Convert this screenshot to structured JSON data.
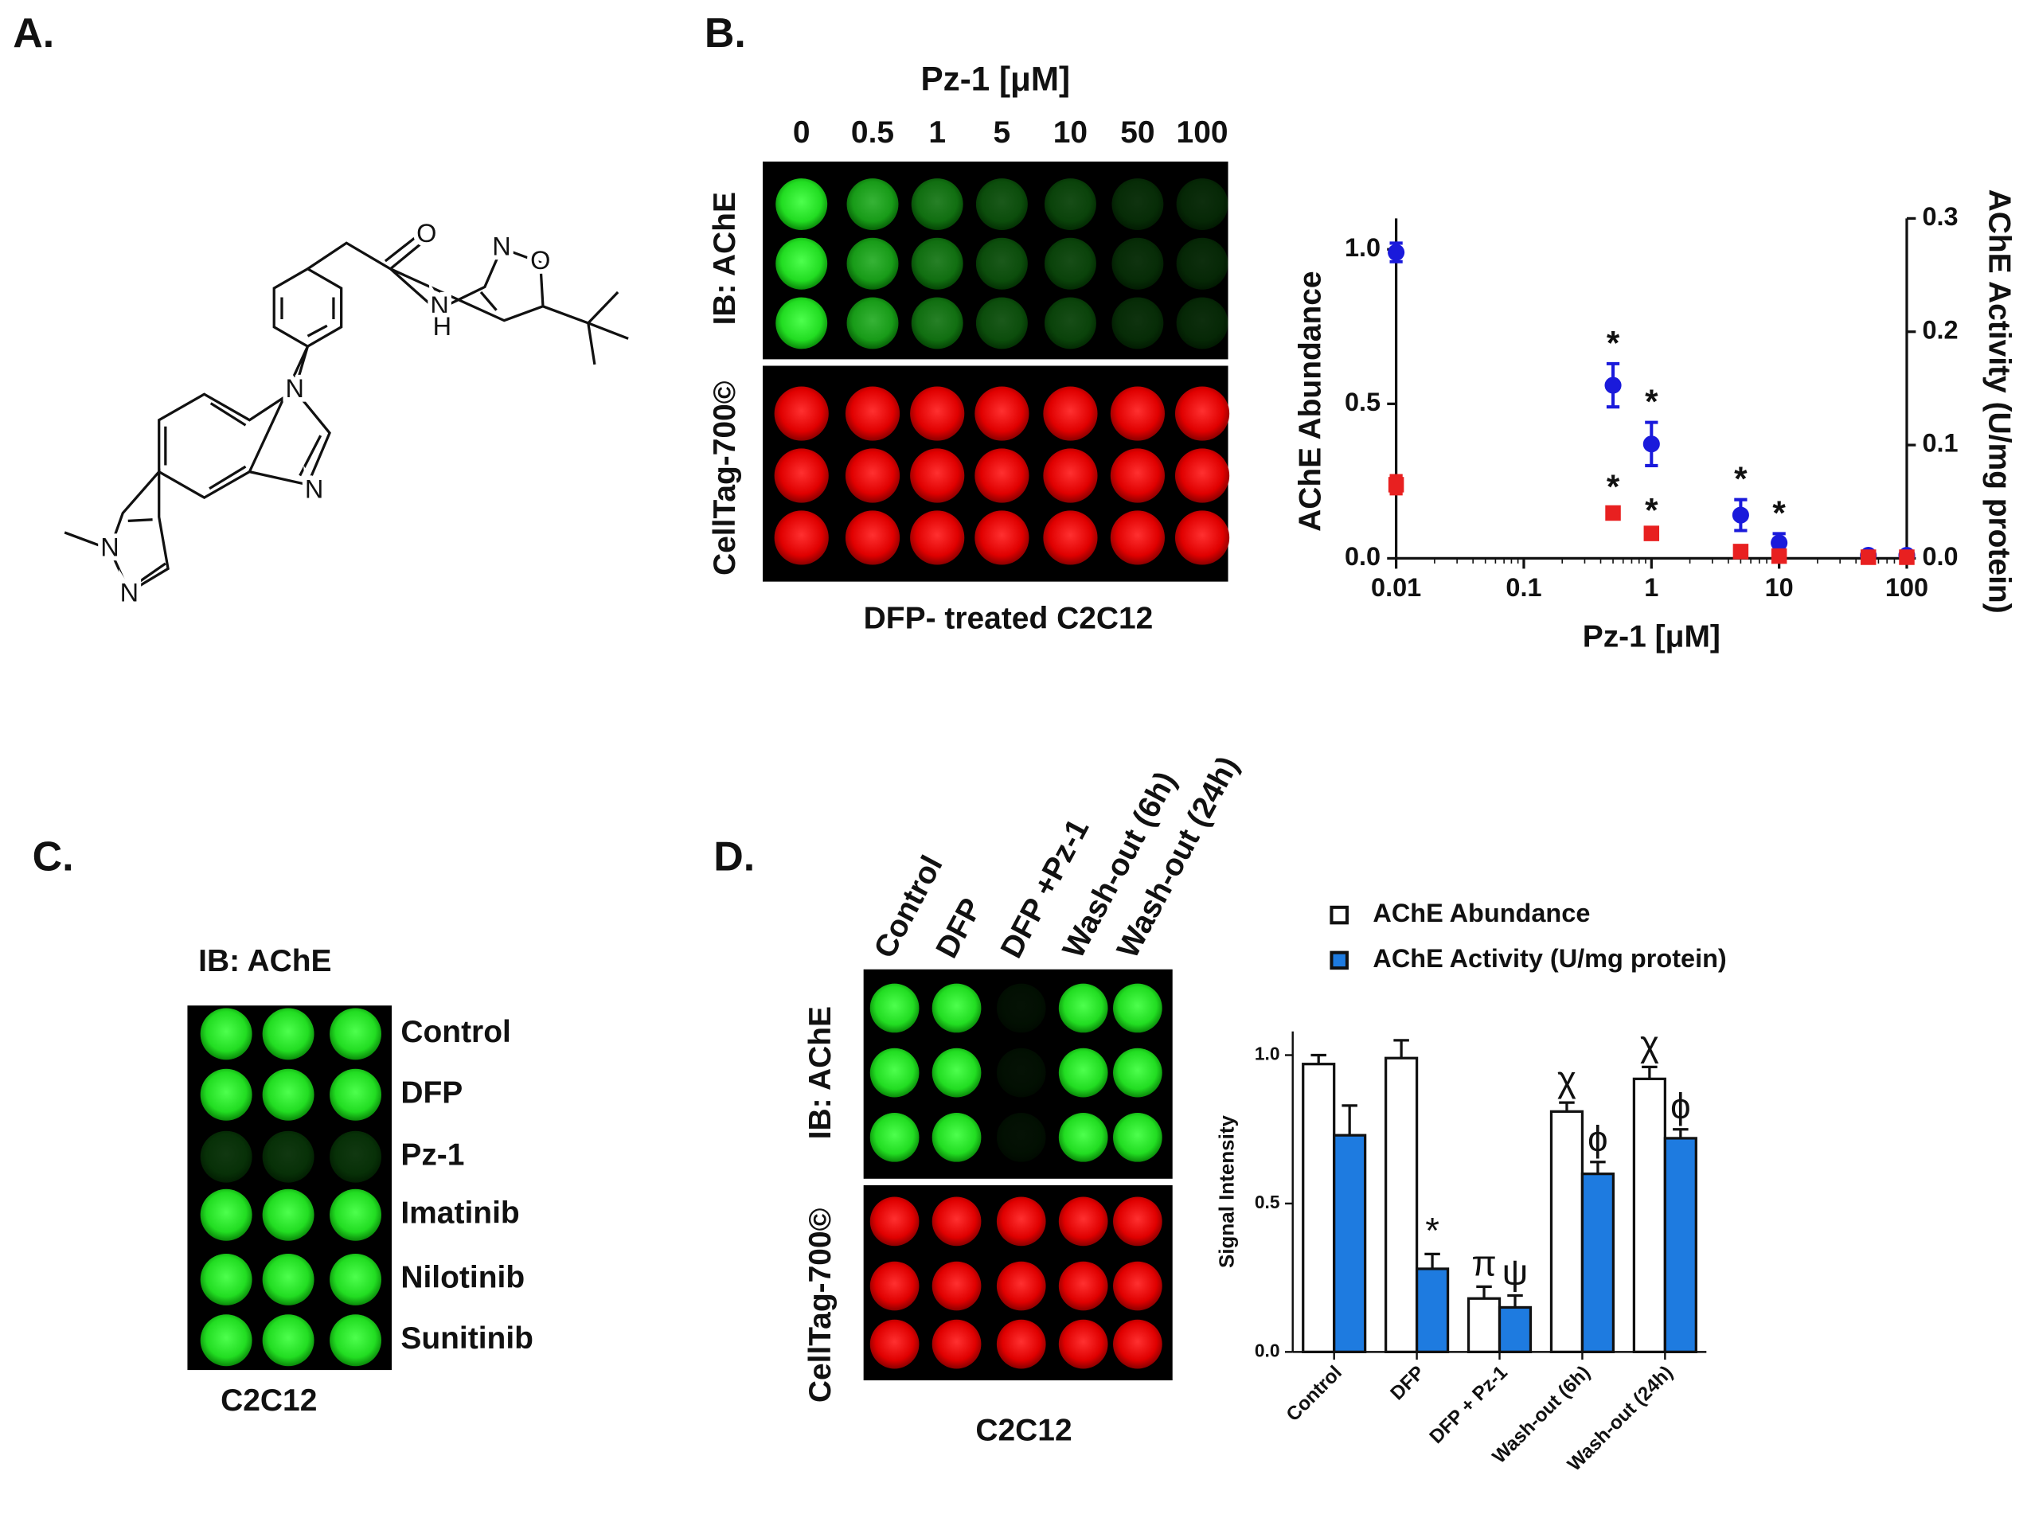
{
  "panels": [
    "A.",
    "B.",
    "C.",
    "D."
  ],
  "structure": {
    "atoms": [
      "O",
      "N",
      "H",
      "N",
      "O",
      "N",
      "N",
      "N",
      "N"
    ]
  },
  "blot_b": {
    "title": "Pz-1 [μM]",
    "columns": [
      "0",
      "0.5",
      "1",
      "5",
      "10",
      "50",
      "100"
    ],
    "rows": [
      "IB: AChE",
      "CellTag-700©"
    ],
    "caption": "DFP- treated C2C12"
  },
  "blot_c": {
    "title": "IB: AChE",
    "rows": [
      "Control",
      "DFP",
      "Pz-1",
      "Imatinib",
      "Nilotinib",
      "Sunitinib"
    ],
    "caption": "C2C12"
  },
  "blot_d": {
    "columns": [
      "Control",
      "DFP",
      "DFP +Pz-1",
      "Wash-out (6h)",
      "Wash-out (24h)"
    ],
    "rows": [
      "IB: AChE",
      "CellTag-700©"
    ],
    "caption": "C2C12"
  },
  "chart_data": [
    {
      "type": "scatter",
      "xlabel": "Pz-1 [μM]",
      "ylabel": "AChE Abundance",
      "y2label": "AChE Activity (U/mg protein)",
      "xlog": true,
      "x": [
        0.01,
        0.5,
        1,
        5,
        10,
        50,
        100
      ],
      "xlim": [
        0.01,
        100
      ],
      "xticks": [
        0.01,
        0.1,
        1,
        10,
        100
      ],
      "ylim": [
        0,
        1.1
      ],
      "yticks": [
        {
          "value": 0,
          "label": "0.0"
        },
        {
          "value": 0.5,
          "label": "0.5"
        },
        {
          "value": 1,
          "label": "1.0"
        }
      ],
      "y2lim": [
        0,
        0.3
      ],
      "y2ticks": [
        {
          "value": 0,
          "label": "0.0"
        },
        0.1,
        0.2,
        0.3
      ],
      "series": [
        {
          "name": "AChE Abundance",
          "color": "#1a1adb",
          "marker": "circle",
          "values": [
            0.99,
            0.56,
            0.37,
            0.14,
            0.05,
            0.01,
            0.01
          ],
          "errors": [
            0.03,
            0.07,
            0.07,
            0.05,
            0.03,
            0.01,
            0.01
          ]
        },
        {
          "name": "AChE Activity",
          "color": "#e82020",
          "marker": "square",
          "axis": "y2",
          "values": [
            0.065,
            0.04,
            0.022,
            0.006,
            0.002,
            0.001,
            0.001
          ],
          "errors": [
            0.008,
            0.005,
            0.002,
            0.002,
            0.001,
            0.001,
            0.001
          ]
        }
      ],
      "annotations": [
        {
          "text": "*",
          "series": 0,
          "index": 1
        },
        {
          "text": "*",
          "series": 0,
          "index": 2
        },
        {
          "text": "*",
          "series": 0,
          "index": 3
        },
        {
          "text": "*",
          "series": 0,
          "index": 4
        },
        {
          "text": "*",
          "series": 1,
          "index": 1
        },
        {
          "text": "*",
          "series": 1,
          "index": 2
        }
      ]
    },
    {
      "type": "bar",
      "ylabel": "Signal Intensity",
      "legend": "top",
      "categories": [
        "Control",
        "DFP",
        "DFP + Pz-1",
        "Wash-out (6h)",
        "Wash-out (24h)"
      ],
      "ylim": [
        0,
        1.08
      ],
      "yticks": [
        {
          "value": 0,
          "label": "0.0"
        },
        {
          "value": 0.5,
          "label": "0.5"
        },
        {
          "value": 1,
          "label": "1.0"
        }
      ],
      "series": [
        {
          "name": "AChE Abundance",
          "color": "#ffffff",
          "values": [
            0.97,
            0.99,
            0.18,
            0.81,
            0.92
          ],
          "errors": [
            0.03,
            0.06,
            0.04,
            0.03,
            0.04
          ]
        },
        {
          "name": "AChE Activity (U/mg protein)",
          "color": "#1e7be0",
          "values": [
            0.73,
            0.28,
            0.15,
            0.6,
            0.72
          ],
          "errors": [
            0.1,
            0.05,
            0.04,
            0.04,
            0.03
          ]
        }
      ],
      "annotations": [
        {
          "text": "*",
          "series": 1,
          "index": 1
        },
        {
          "text": "π",
          "series": 0,
          "index": 2
        },
        {
          "text": "ψ",
          "series": 1,
          "index": 2
        },
        {
          "text": "χ",
          "series": 0,
          "index": 3
        },
        {
          "text": "ϕ",
          "series": 1,
          "index": 3
        },
        {
          "text": "χ",
          "series": 0,
          "index": 4
        },
        {
          "text": "ϕ",
          "series": 1,
          "index": 4
        }
      ]
    }
  ]
}
